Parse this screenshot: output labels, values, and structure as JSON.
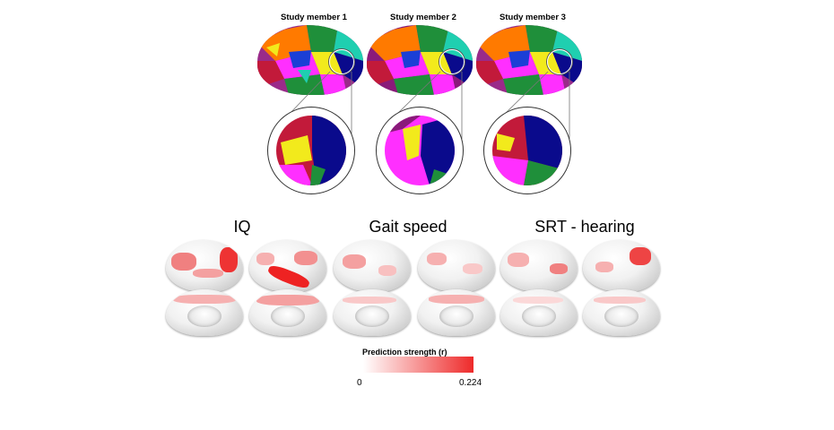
{
  "top_panel": {
    "members": [
      "Study member 1",
      "Study member 2",
      "Study member 3"
    ]
  },
  "bottom_panel": {
    "titles": [
      "IQ",
      "Gait speed",
      "SRT - hearing"
    ]
  },
  "colorbar": {
    "label": "Prediction strength (r)",
    "min_label": "0",
    "max_label": "0.224",
    "min_value": 0,
    "max_value": 0.224,
    "colors": [
      "#ffffff",
      "#ee2a2a"
    ]
  },
  "parcel_colors": [
    "#1b3fd6",
    "#ff2fff",
    "#f2ea1c",
    "#0a0a8c",
    "#1f8f3a",
    "#ff7a00",
    "#8a1a7a",
    "#1fcfb0",
    "#c21a3a"
  ]
}
